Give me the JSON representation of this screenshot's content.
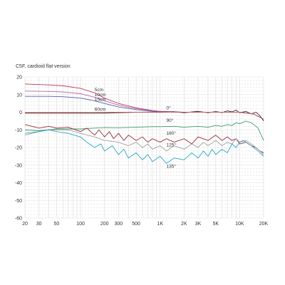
{
  "chart_data": {
    "type": "line",
    "title": "C5F, cardioid flat version",
    "xlabel": "",
    "ylabel": "",
    "x_scale": "log",
    "xlim": [
      20,
      20000
    ],
    "ylim": [
      -60,
      20
    ],
    "grid": true,
    "x_ticks": [
      {
        "value": 20,
        "label": "20"
      },
      {
        "value": 30,
        "label": "30"
      },
      {
        "value": 50,
        "label": "50"
      },
      {
        "value": 100,
        "label": "100"
      },
      {
        "value": 200,
        "label": "200"
      },
      {
        "value": 300,
        "label": "300"
      },
      {
        "value": 500,
        "label": "500"
      },
      {
        "value": 1000,
        "label": "1K"
      },
      {
        "value": 2000,
        "label": "2K"
      },
      {
        "value": 3000,
        "label": "3K"
      },
      {
        "value": 5000,
        "label": "5K"
      },
      {
        "value": 10000,
        "label": "10K"
      },
      {
        "value": 20000,
        "label": "20K"
      }
    ],
    "y_ticks": [
      {
        "value": 20,
        "label": "20"
      },
      {
        "value": 10,
        "label": "10"
      },
      {
        "value": 0,
        "label": "0"
      },
      {
        "value": -10,
        "label": "-10"
      },
      {
        "value": -20,
        "label": "-20"
      },
      {
        "value": -30,
        "label": "-30"
      },
      {
        "value": -40,
        "label": "-40"
      },
      {
        "value": -50,
        "label": "-50"
      },
      {
        "value": -60,
        "label": "-60"
      }
    ],
    "series": [
      {
        "name": "5cm",
        "color": "#c0395a",
        "label_at": [
          150,
          12
        ],
        "points": [
          [
            20,
            16
          ],
          [
            40,
            15.5
          ],
          [
            60,
            15
          ],
          [
            100,
            13.5
          ],
          [
            150,
            11
          ],
          [
            200,
            8
          ],
          [
            300,
            5
          ],
          [
            500,
            2.5
          ],
          [
            800,
            1
          ],
          [
            1000,
            0.5
          ],
          [
            2000,
            0
          ],
          [
            5000,
            0
          ],
          [
            10000,
            0
          ],
          [
            15000,
            -1
          ],
          [
            20000,
            -4
          ]
        ]
      },
      {
        "name": "10cm",
        "color": "#b06aa8",
        "label_at": [
          150,
          9
        ],
        "points": [
          [
            20,
            12
          ],
          [
            40,
            11.8
          ],
          [
            60,
            11.5
          ],
          [
            100,
            10.5
          ],
          [
            150,
            8.5
          ],
          [
            200,
            6.5
          ],
          [
            300,
            4
          ],
          [
            500,
            2
          ],
          [
            800,
            0.8
          ],
          [
            1000,
            0.3
          ],
          [
            2000,
            0
          ],
          [
            5000,
            0
          ],
          [
            10000,
            0
          ],
          [
            15000,
            -1
          ],
          [
            20000,
            -4
          ]
        ]
      },
      {
        "name": "15cm",
        "color": "#4f64b0",
        "label_at": [
          150,
          6.5
        ],
        "points": [
          [
            20,
            9
          ],
          [
            40,
            9
          ],
          [
            60,
            8.8
          ],
          [
            100,
            8
          ],
          [
            150,
            6.5
          ],
          [
            200,
            5
          ],
          [
            300,
            3
          ],
          [
            500,
            1.5
          ],
          [
            800,
            0.5
          ],
          [
            1000,
            0.2
          ],
          [
            2000,
            0
          ],
          [
            5000,
            0
          ],
          [
            10000,
            0
          ],
          [
            15000,
            -1
          ],
          [
            20000,
            -4
          ]
        ]
      },
      {
        "name": "60cm",
        "color": "#333333",
        "label_at": [
          150,
          0.8
        ],
        "points": [
          [
            20,
            -0.5
          ],
          [
            30,
            -0.5
          ],
          [
            50,
            -0.5
          ],
          [
            100,
            -0.5
          ],
          [
            200,
            -0.5
          ],
          [
            300,
            -0.3
          ],
          [
            500,
            0
          ],
          [
            1000,
            0
          ],
          [
            1500,
            0.3
          ],
          [
            2000,
            -0.3
          ],
          [
            3000,
            0.5
          ],
          [
            4000,
            -0.3
          ],
          [
            5000,
            0.4
          ],
          [
            6000,
            -0.2
          ],
          [
            7000,
            0.8
          ],
          [
            8000,
            0.2
          ],
          [
            9000,
            1.2
          ],
          [
            10000,
            -0.3
          ],
          [
            12000,
            0.5
          ],
          [
            14000,
            -1
          ],
          [
            16000,
            0
          ],
          [
            18000,
            -2
          ],
          [
            20000,
            -5
          ]
        ]
      },
      {
        "name": "0°",
        "color": "#cc5555",
        "label_at": [
          1200,
          1.6
        ],
        "points": [
          [
            20,
            -0.2
          ],
          [
            100,
            -0.2
          ],
          [
            500,
            0
          ],
          [
            1000,
            0.1
          ],
          [
            2000,
            0
          ],
          [
            5000,
            0
          ],
          [
            10000,
            0
          ],
          [
            15000,
            -1
          ],
          [
            20000,
            -4
          ]
        ]
      },
      {
        "name": "90°",
        "color": "#3a9d6a",
        "label_at": [
          1200,
          -5.5
        ],
        "points": [
          [
            20,
            -10
          ],
          [
            30,
            -10.5
          ],
          [
            50,
            -9.5
          ],
          [
            70,
            -9.5
          ],
          [
            100,
            -9.5
          ],
          [
            150,
            -9
          ],
          [
            200,
            -8.7
          ],
          [
            300,
            -8.8
          ],
          [
            500,
            -8.5
          ],
          [
            800,
            -8.2
          ],
          [
            1000,
            -8.2
          ],
          [
            1500,
            -8
          ],
          [
            2000,
            -8.5
          ],
          [
            3000,
            -8
          ],
          [
            4000,
            -8.5
          ],
          [
            5000,
            -7.5
          ],
          [
            6000,
            -8
          ],
          [
            7000,
            -7
          ],
          [
            8000,
            -7.5
          ],
          [
            9000,
            -6
          ],
          [
            10000,
            -6.5
          ],
          [
            12000,
            -5
          ],
          [
            14000,
            -6
          ],
          [
            15000,
            -7
          ],
          [
            17000,
            -9
          ],
          [
            20000,
            -16
          ]
        ]
      },
      {
        "name": "180°",
        "color": "#9b2b39",
        "label_at": [
          1200,
          -12.7
        ],
        "points": [
          [
            20,
            -7
          ],
          [
            30,
            -9
          ],
          [
            40,
            -8
          ],
          [
            50,
            -9
          ],
          [
            70,
            -8.5
          ],
          [
            100,
            -11
          ],
          [
            120,
            -9
          ],
          [
            150,
            -13
          ],
          [
            170,
            -10
          ],
          [
            200,
            -14
          ],
          [
            230,
            -11
          ],
          [
            260,
            -15
          ],
          [
            300,
            -12
          ],
          [
            350,
            -16
          ],
          [
            400,
            -13
          ],
          [
            500,
            -16
          ],
          [
            600,
            -14
          ],
          [
            700,
            -17
          ],
          [
            800,
            -15
          ],
          [
            1000,
            -17
          ],
          [
            1200,
            -15
          ],
          [
            1500,
            -17
          ],
          [
            2000,
            -15
          ],
          [
            2500,
            -18
          ],
          [
            3000,
            -14
          ],
          [
            4000,
            -16
          ],
          [
            5000,
            -13
          ],
          [
            6000,
            -16
          ],
          [
            7000,
            -14
          ],
          [
            8000,
            -16
          ],
          [
            9000,
            -15
          ],
          [
            10000,
            -18
          ],
          [
            12000,
            -17
          ],
          [
            14000,
            -19
          ],
          [
            16000,
            -20
          ],
          [
            18000,
            -22
          ],
          [
            20000,
            -23
          ]
        ]
      },
      {
        "name": "125°",
        "color": "#a0a0a0",
        "label_at": [
          1200,
          -19.3
        ],
        "points": [
          [
            20,
            -13
          ],
          [
            30,
            -11
          ],
          [
            40,
            -10
          ],
          [
            50,
            -10
          ],
          [
            70,
            -10
          ],
          [
            100,
            -12
          ],
          [
            150,
            -14
          ],
          [
            200,
            -16
          ],
          [
            300,
            -17
          ],
          [
            400,
            -19
          ],
          [
            500,
            -17
          ],
          [
            600,
            -20
          ],
          [
            700,
            -18
          ],
          [
            800,
            -21
          ],
          [
            1000,
            -19
          ],
          [
            1200,
            -22
          ],
          [
            1500,
            -19
          ],
          [
            2000,
            -21
          ],
          [
            2500,
            -18
          ],
          [
            3000,
            -20
          ],
          [
            3500,
            -17
          ],
          [
            4000,
            -19
          ],
          [
            5000,
            -16
          ],
          [
            6000,
            -19
          ],
          [
            7000,
            -17
          ],
          [
            8000,
            -18
          ],
          [
            9000,
            -15
          ],
          [
            10000,
            -17
          ],
          [
            12000,
            -16
          ],
          [
            14000,
            -18
          ],
          [
            16000,
            -20
          ],
          [
            18000,
            -22
          ],
          [
            20000,
            -24
          ]
        ]
      },
      {
        "name": "135°",
        "color": "#27a6c8",
        "label_at": [
          1200,
          -31.6
        ],
        "points": [
          [
            20,
            -12
          ],
          [
            30,
            -11
          ],
          [
            40,
            -10
          ],
          [
            50,
            -11
          ],
          [
            70,
            -12
          ],
          [
            100,
            -14
          ],
          [
            120,
            -17
          ],
          [
            150,
            -20
          ],
          [
            180,
            -18
          ],
          [
            200,
            -22
          ],
          [
            250,
            -19
          ],
          [
            300,
            -24
          ],
          [
            350,
            -21
          ],
          [
            400,
            -26
          ],
          [
            500,
            -23
          ],
          [
            600,
            -27
          ],
          [
            700,
            -24
          ],
          [
            800,
            -28
          ],
          [
            1000,
            -25
          ],
          [
            1200,
            -29
          ],
          [
            1500,
            -26
          ],
          [
            2000,
            -27
          ],
          [
            2500,
            -23
          ],
          [
            3000,
            -26
          ],
          [
            3500,
            -22
          ],
          [
            4000,
            -25
          ],
          [
            4500,
            -21
          ],
          [
            5000,
            -24
          ],
          [
            6000,
            -21
          ],
          [
            7000,
            -23
          ],
          [
            8000,
            -18
          ],
          [
            9000,
            -20
          ],
          [
            10000,
            -17
          ],
          [
            11000,
            -16
          ],
          [
            12000,
            -17
          ],
          [
            14000,
            -19
          ],
          [
            16000,
            -21
          ],
          [
            18000,
            -23
          ],
          [
            20000,
            -25
          ]
        ]
      }
    ]
  }
}
